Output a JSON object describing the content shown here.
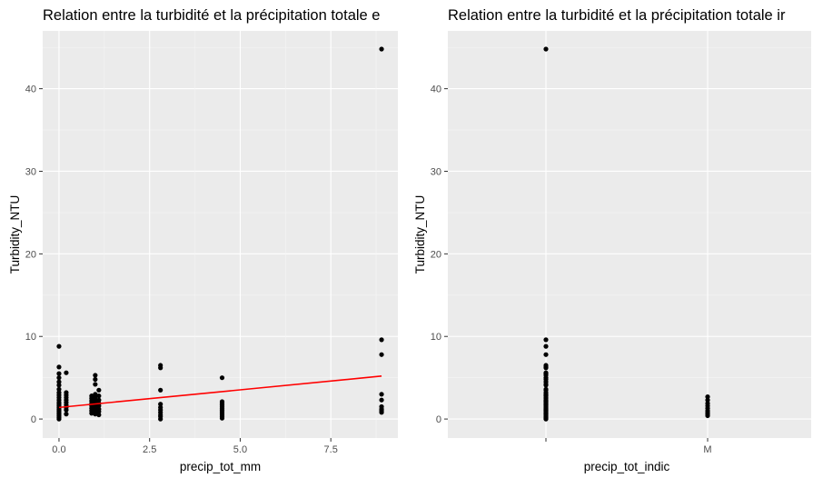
{
  "chart_data": [
    {
      "type": "scatter",
      "title": "Relation entre la turbidité et la précipitation totale e",
      "xlabel": "precip_tot_mm",
      "ylabel": "Turbidity_NTU",
      "xlim": [
        -0.45,
        9.35
      ],
      "ylim": [
        -2.3,
        47.0
      ],
      "xticks": [
        0,
        2.5,
        5,
        7.5
      ],
      "xtick_labels": [
        "0.0",
        "2.5",
        "5.0",
        "7.5"
      ],
      "yticks": [
        0,
        10,
        20,
        30,
        40
      ],
      "ytick_labels": [
        "0",
        "10",
        "20",
        "30",
        "40"
      ],
      "grid": true,
      "points": [
        [
          0,
          8.8
        ],
        [
          0,
          6.3
        ],
        [
          0,
          5.5
        ],
        [
          0,
          5.0
        ],
        [
          0,
          4.5
        ],
        [
          0,
          4.1
        ],
        [
          0,
          3.6
        ],
        [
          0,
          3.2
        ],
        [
          0,
          2.9
        ],
        [
          0,
          2.6
        ],
        [
          0,
          2.3
        ],
        [
          0,
          2.0
        ],
        [
          0,
          1.8
        ],
        [
          0,
          1.6
        ],
        [
          0,
          1.4
        ],
        [
          0,
          1.2
        ],
        [
          0,
          1.0
        ],
        [
          0,
          0.8
        ],
        [
          0,
          0.6
        ],
        [
          0,
          0.4
        ],
        [
          0,
          0.2
        ],
        [
          0,
          0.0
        ],
        [
          0.2,
          5.6
        ],
        [
          0.2,
          3.2
        ],
        [
          0.2,
          2.9
        ],
        [
          0.2,
          2.6
        ],
        [
          0.2,
          2.3
        ],
        [
          0.2,
          2.0
        ],
        [
          0.2,
          1.7
        ],
        [
          0.2,
          1.4
        ],
        [
          0.2,
          1.1
        ],
        [
          0.2,
          0.6
        ],
        [
          0.9,
          2.8
        ],
        [
          0.9,
          2.5
        ],
        [
          0.9,
          2.2
        ],
        [
          0.9,
          1.9
        ],
        [
          0.9,
          1.6
        ],
        [
          0.9,
          1.3
        ],
        [
          0.9,
          1.0
        ],
        [
          0.9,
          0.7
        ],
        [
          1.0,
          5.3
        ],
        [
          1.0,
          4.8
        ],
        [
          1.0,
          4.2
        ],
        [
          1.0,
          3.0
        ],
        [
          1.0,
          2.7
        ],
        [
          1.0,
          2.4
        ],
        [
          1.0,
          2.1
        ],
        [
          1.0,
          1.8
        ],
        [
          1.0,
          1.5
        ],
        [
          1.0,
          1.2
        ],
        [
          1.0,
          0.9
        ],
        [
          1.0,
          0.6
        ],
        [
          1.1,
          3.5
        ],
        [
          1.1,
          2.8
        ],
        [
          1.1,
          2.3
        ],
        [
          1.1,
          1.9
        ],
        [
          1.1,
          1.6
        ],
        [
          1.1,
          1.2
        ],
        [
          1.1,
          0.9
        ],
        [
          1.1,
          0.5
        ],
        [
          2.8,
          6.5
        ],
        [
          2.8,
          6.2
        ],
        [
          2.8,
          3.5
        ],
        [
          2.8,
          1.8
        ],
        [
          2.8,
          1.4
        ],
        [
          2.8,
          1.1
        ],
        [
          2.8,
          0.8
        ],
        [
          2.8,
          0.5
        ],
        [
          2.8,
          0.3
        ],
        [
          2.8,
          0.0
        ],
        [
          4.5,
          5.0
        ],
        [
          4.5,
          2.1
        ],
        [
          4.5,
          1.9
        ],
        [
          4.5,
          1.7
        ],
        [
          4.5,
          1.5
        ],
        [
          4.5,
          1.3
        ],
        [
          4.5,
          1.1
        ],
        [
          4.5,
          0.9
        ],
        [
          4.5,
          0.7
        ],
        [
          4.5,
          0.5
        ],
        [
          4.5,
          0.3
        ],
        [
          4.5,
          0.1
        ],
        [
          8.9,
          44.8
        ],
        [
          8.9,
          9.6
        ],
        [
          8.9,
          7.8
        ],
        [
          8.9,
          3.0
        ],
        [
          8.9,
          2.3
        ],
        [
          8.9,
          1.5
        ],
        [
          8.9,
          1.2
        ],
        [
          8.9,
          1.0
        ],
        [
          8.9,
          0.8
        ]
      ],
      "fit_line": {
        "x": [
          0,
          8.9
        ],
        "y": [
          1.4,
          5.2
        ],
        "color": "#ff0000"
      },
      "point_color": "#000000"
    },
    {
      "type": "scatter",
      "title": "Relation entre la turbidité et la précipitation totale ir",
      "xlabel": "precip_tot_indic",
      "ylabel": "Turbidity_NTU",
      "ylim": [
        -2.3,
        47.0
      ],
      "categories": [
        "",
        "M"
      ],
      "yticks": [
        0,
        10,
        20,
        30,
        40
      ],
      "ytick_labels": [
        "0",
        "10",
        "20",
        "30",
        "40"
      ],
      "grid": true,
      "series": [
        {
          "category": "",
          "values": [
            44.8,
            9.6,
            8.8,
            7.8,
            6.5,
            6.3,
            6.2,
            5.6,
            5.5,
            5.3,
            5.0,
            4.8,
            4.5,
            4.2,
            4.1,
            3.6,
            3.5,
            3.2,
            3.0,
            2.9,
            2.8,
            2.6,
            2.5,
            2.3,
            2.2,
            2.1,
            2.0,
            1.9,
            1.8,
            1.7,
            1.6,
            1.5,
            1.4,
            1.3,
            1.2,
            1.1,
            1.0,
            0.9,
            0.8,
            0.7,
            0.6,
            0.5,
            0.4,
            0.3,
            0.2,
            0.1,
            0.0
          ]
        },
        {
          "category": "M",
          "values": [
            2.7,
            2.3,
            1.9,
            1.6,
            1.3,
            1.0,
            0.8,
            0.6,
            0.4
          ]
        }
      ],
      "point_color": "#000000"
    }
  ]
}
